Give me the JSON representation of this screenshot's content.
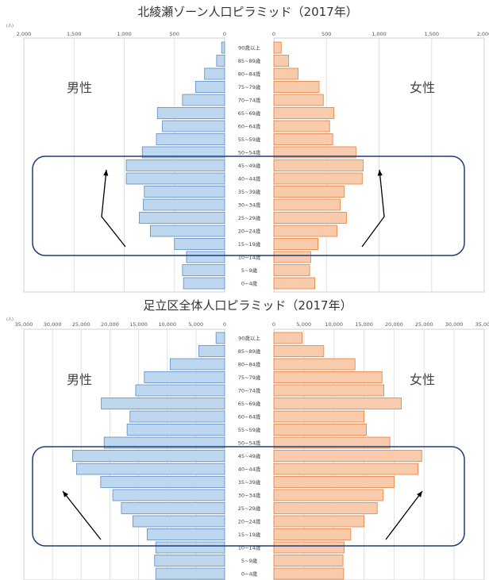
{
  "chart_data": [
    {
      "type": "bar",
      "orientation": "horizontal",
      "title": "北綾瀬ゾーン人口ピラミッド（2017年）",
      "unit_label": "(人)",
      "left_label": "男性",
      "right_label": "女性",
      "categories": [
        "90歳以上",
        "85~89歳",
        "80~84歳",
        "75~79歳",
        "70~74歳",
        "65~69歳",
        "60~64歳",
        "55~59歳",
        "50~54歳",
        "45~49歳",
        "40~44歳",
        "35~39歳",
        "30~34歳",
        "25~29歳",
        "20~24歳",
        "15~19歳",
        "10~14歳",
        "5~9歳",
        "0~4歳"
      ],
      "tick_labels_left": [
        "2,000",
        "1,500",
        "1,000",
        "500",
        "0"
      ],
      "tick_labels_right": [
        "0",
        "500",
        "1,000",
        "1,500",
        "2,000"
      ],
      "xlim": [
        0,
        2000
      ],
      "grid": true,
      "series": [
        {
          "name": "男性",
          "values": [
            30,
            80,
            200,
            290,
            420,
            670,
            620,
            680,
            820,
            980,
            980,
            800,
            810,
            850,
            740,
            500,
            380,
            420,
            410
          ]
        },
        {
          "name": "女性",
          "values": [
            70,
            140,
            230,
            430,
            470,
            570,
            530,
            560,
            780,
            850,
            840,
            670,
            630,
            690,
            600,
            420,
            350,
            340,
            390
          ]
        }
      ],
      "colors": {
        "male_fill": "#bdd7ee",
        "male_stroke": "#5b8cc8",
        "female_fill": "#f8cbad",
        "female_stroke": "#ed7d31",
        "highlight": "#1f3b7a"
      },
      "highlight_ages": [
        "15~19歳",
        "45~49歳"
      ]
    },
    {
      "type": "bar",
      "orientation": "horizontal",
      "title": "足立区全体人口ピラミッド（2017年）",
      "unit_label": "(人)",
      "left_label": "男性",
      "right_label": "女性",
      "categories": [
        "90歳以上",
        "85~89歳",
        "80~84歳",
        "75~79歳",
        "70~74歳",
        "65~69歳",
        "60~64歳",
        "55~59歳",
        "50~54歳",
        "45~49歳",
        "40~44歳",
        "35~39歳",
        "30~34歳",
        "25~29歳",
        "20~24歳",
        "15~19歳",
        "10~14歳",
        "5~9歳",
        "0~4歳"
      ],
      "tick_labels_left": [
        "35,000",
        "30,000",
        "25,000",
        "20,000",
        "15,000",
        "10,000",
        "5,000",
        "0"
      ],
      "tick_labels_right": [
        "0",
        "5,000",
        "10,000",
        "15,000",
        "20,000",
        "25,000",
        "30,000",
        "35,000"
      ],
      "xlim": [
        0,
        35000
      ],
      "grid": true,
      "series": [
        {
          "name": "男性",
          "values": [
            1500,
            4500,
            9500,
            14000,
            15500,
            21500,
            16500,
            17000,
            21000,
            26500,
            25800,
            21600,
            19500,
            18000,
            16000,
            13500,
            12000,
            12200,
            12000
          ]
        },
        {
          "name": "女性",
          "values": [
            4700,
            8300,
            13500,
            18000,
            18300,
            21200,
            15000,
            15400,
            19300,
            24600,
            24000,
            20000,
            18200,
            17200,
            15000,
            12800,
            11700,
            11500,
            11600
          ]
        }
      ],
      "colors": {
        "male_fill": "#bdd7ee",
        "male_stroke": "#5b8cc8",
        "female_fill": "#f8cbad",
        "female_stroke": "#ed7d31",
        "highlight": "#1f3b7a"
      },
      "highlight_ages": [
        "15~19歳",
        "45~49歳"
      ]
    }
  ]
}
